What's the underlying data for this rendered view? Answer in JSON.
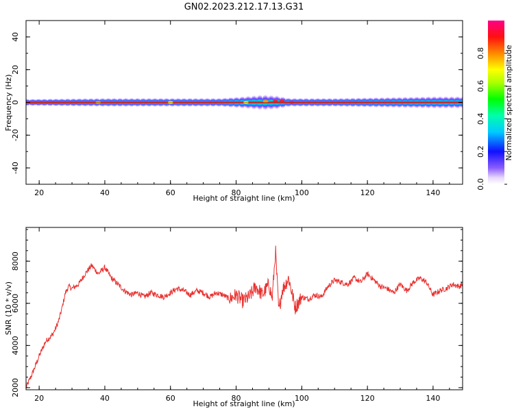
{
  "figure_title": "GN02.2023.212.17.13.G31",
  "chart_data": [
    {
      "type": "heatmap",
      "xlabel": "Height of straight line (km)",
      "ylabel": "Frequency (Hz)",
      "xlim": [
        16,
        149
      ],
      "ylim": [
        -50,
        50
      ],
      "xticks": [
        20,
        40,
        60,
        80,
        100,
        120,
        140
      ],
      "yticks": [
        -40,
        -20,
        0,
        20,
        40
      ],
      "colorbar": {
        "label": "Normalized spectral amplitude",
        "range": [
          0,
          1
        ],
        "ticks": [
          "0.0",
          "0.2",
          "0.4",
          "0.6",
          "0.8"
        ],
        "colormap": "white-purple-blue-cyan-green-yellow-orange-red-magenta"
      },
      "band_center_hz": 0,
      "band_halfwidth_hz": [
        {
          "x": 16,
          "hz": 2
        },
        {
          "x": 40,
          "hz": 2.5
        },
        {
          "x": 60,
          "hz": 2.5
        },
        {
          "x": 75,
          "hz": 2.5
        },
        {
          "x": 82,
          "hz": 3.5
        },
        {
          "x": 88,
          "hz": 4.5
        },
        {
          "x": 92,
          "hz": 4
        },
        {
          "x": 96,
          "hz": 2.5
        },
        {
          "x": 110,
          "hz": 2.5
        },
        {
          "x": 125,
          "hz": 3
        },
        {
          "x": 140,
          "hz": 3.5
        },
        {
          "x": 149,
          "hz": 3.5
        }
      ],
      "grid": false
    },
    {
      "type": "line",
      "xlabel": "Height of straight line (km)",
      "ylabel": "SNR (10 * v/v)",
      "xlim": [
        16,
        149
      ],
      "ylim": [
        1900,
        9600
      ],
      "xticks": [
        20,
        40,
        60,
        80,
        100,
        120,
        140
      ],
      "yticks": [
        2000,
        4000,
        6000,
        8000
      ],
      "color": "#e8312f",
      "series": [
        {
          "x": [
            16,
            18,
            20,
            22,
            24,
            25,
            26,
            27,
            28,
            29,
            30,
            32,
            34,
            35,
            36,
            38,
            40,
            42,
            44,
            46,
            48,
            50,
            52,
            54,
            56,
            58,
            60,
            62,
            64,
            66,
            68,
            70,
            72,
            74,
            76,
            78,
            80,
            82,
            84,
            86,
            88,
            90,
            91,
            92,
            93,
            94,
            96,
            98,
            100,
            102,
            104,
            106,
            108,
            110,
            112,
            114,
            116,
            118,
            120,
            122,
            124,
            126,
            128,
            130,
            132,
            134,
            136,
            138,
            140,
            142,
            144,
            146,
            148,
            149
          ],
          "values": [
            2000,
            2700,
            3500,
            4200,
            4500,
            4800,
            5200,
            5800,
            6500,
            6800,
            6700,
            6900,
            7400,
            7600,
            7800,
            7400,
            7700,
            7200,
            6900,
            6600,
            6400,
            6500,
            6300,
            6500,
            6400,
            6300,
            6500,
            6700,
            6600,
            6400,
            6600,
            6500,
            6300,
            6500,
            6400,
            6200,
            6400,
            6100,
            6300,
            6800,
            6400,
            6900,
            6200,
            8500,
            5600,
            6600,
            7200,
            5800,
            6300,
            6200,
            6400,
            6300,
            6800,
            7100,
            7000,
            6900,
            7200,
            7000,
            7400,
            7100,
            6800,
            6700,
            6500,
            6900,
            6600,
            7000,
            7200,
            7000,
            6400,
            6600,
            6700,
            6900,
            6800,
            6900
          ]
        }
      ]
    }
  ]
}
